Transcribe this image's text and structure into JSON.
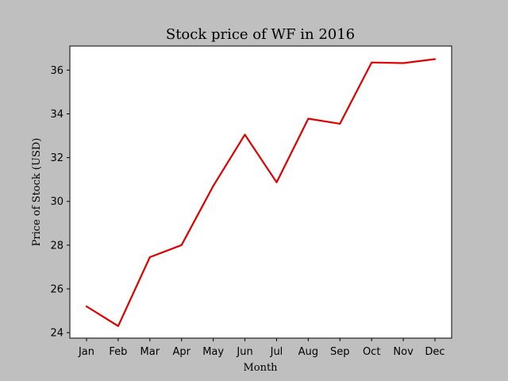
{
  "chart_data": {
    "type": "line",
    "title": "Stock price of WF in 2016",
    "xlabel": "Month",
    "ylabel": "Price of Stock (USD)",
    "categories": [
      "Jan",
      "Feb",
      "Mar",
      "Apr",
      "May",
      "Jun",
      "Jul",
      "Aug",
      "Sep",
      "Oct",
      "Nov",
      "Dec"
    ],
    "series": [
      {
        "values": [
          25.2,
          24.3,
          27.45,
          28.0,
          30.7,
          33.05,
          30.87,
          33.78,
          33.55,
          36.35,
          36.32,
          36.5
        ],
        "color": "#dd0000"
      }
    ],
    "ylim": [
      23.75,
      37.1
    ],
    "yticks": [
      24,
      26,
      28,
      30,
      32,
      34,
      36
    ],
    "ytick_labels": [
      "24",
      "26",
      "28",
      "30",
      "32",
      "34",
      "36"
    ],
    "grid": false,
    "legend": "none",
    "background": "#bfbfbf",
    "plot_background": "#ffffff"
  }
}
